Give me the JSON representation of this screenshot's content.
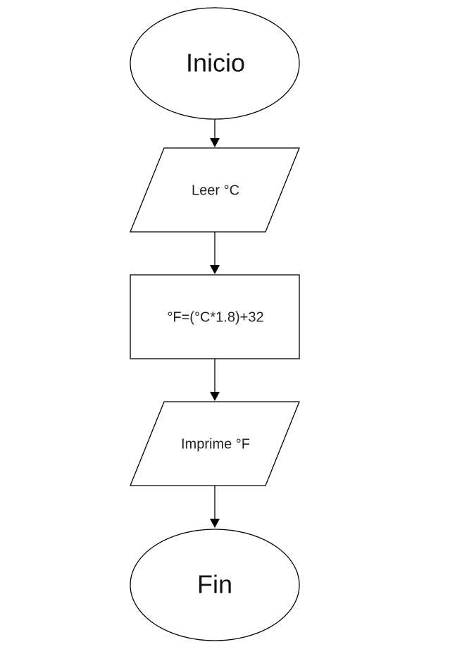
{
  "diagram": {
    "type": "flowchart",
    "nodes": [
      {
        "id": "start",
        "shape": "ellipse",
        "label": "Inicio"
      },
      {
        "id": "read",
        "shape": "parallelogram",
        "label": "Leer °C"
      },
      {
        "id": "process",
        "shape": "rectangle",
        "label": "°F=(°C*1.8)+32"
      },
      {
        "id": "print",
        "shape": "parallelogram",
        "label": "Imprime °F"
      },
      {
        "id": "end",
        "shape": "ellipse",
        "label": "Fin"
      }
    ],
    "edges": [
      {
        "from": "start",
        "to": "read"
      },
      {
        "from": "read",
        "to": "process"
      },
      {
        "from": "process",
        "to": "print"
      },
      {
        "from": "print",
        "to": "end"
      }
    ],
    "colors": {
      "stroke": "#000000",
      "fill": "#ffffff",
      "text": "#111111"
    }
  }
}
